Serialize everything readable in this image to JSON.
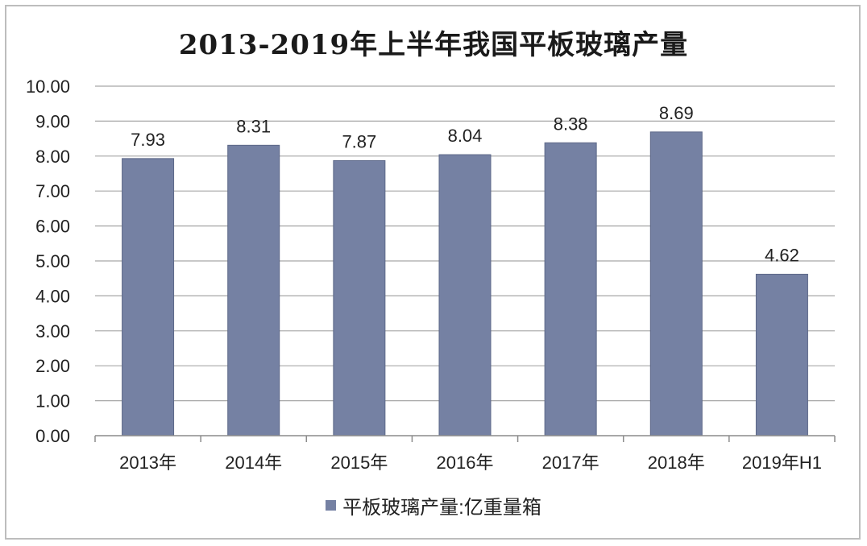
{
  "chart_data": {
    "type": "bar",
    "title": "2013-2019年上半年我国平板玻璃产量",
    "categories": [
      "2013年",
      "2014年",
      "2015年",
      "2016年",
      "2017年",
      "2018年",
      "2019年H1"
    ],
    "series": [
      {
        "name": "平板玻璃产量:亿重量箱",
        "values": [
          7.93,
          8.31,
          7.87,
          8.04,
          8.38,
          8.69,
          4.62
        ],
        "labels": [
          "7.93",
          "8.31",
          "7.87",
          "8.04",
          "8.38",
          "8.69",
          "4.62"
        ]
      }
    ],
    "yticks": [
      "0.00",
      "1.00",
      "2.00",
      "3.00",
      "4.00",
      "5.00",
      "6.00",
      "7.00",
      "8.00",
      "9.00",
      "10.00"
    ],
    "ylim": [
      0,
      10
    ],
    "grid": true,
    "legend_position": "bottom",
    "colors": {
      "bar": "#7581a3",
      "bar_stroke": "#5d6888",
      "grid": "#a6a6a6",
      "axis": "#8c8c8c"
    }
  }
}
